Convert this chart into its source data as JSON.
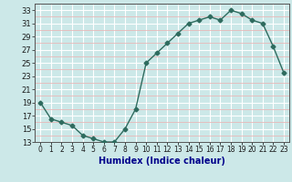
{
  "x": [
    0,
    1,
    2,
    3,
    4,
    5,
    6,
    7,
    8,
    9,
    10,
    11,
    12,
    13,
    14,
    15,
    16,
    17,
    18,
    19,
    20,
    21,
    22,
    23
  ],
  "y": [
    19,
    16.5,
    16,
    15.5,
    14,
    13.5,
    13,
    13,
    15,
    18,
    25,
    26.5,
    28,
    29.5,
    31,
    31.5,
    32,
    31.5,
    33,
    32.5,
    31.5,
    31,
    27.5,
    23.5
  ],
  "xlabel": "Humidex (Indice chaleur)",
  "ylim": [
    13,
    34
  ],
  "yticks": [
    13,
    15,
    17,
    19,
    21,
    23,
    25,
    27,
    29,
    31,
    33
  ],
  "xlim": [
    -0.5,
    23.5
  ],
  "line_color": "#2e6b5e",
  "bg_color": "#cce8e8",
  "grid_major_color": "#ffffff",
  "grid_minor_color": "#e8b8b8",
  "marker": "D",
  "markersize": 2.5,
  "linewidth": 1.0,
  "xlabel_color": "#00008b",
  "xlabel_fontsize": 7,
  "ytick_fontsize": 6,
  "xtick_fontsize": 5.5
}
